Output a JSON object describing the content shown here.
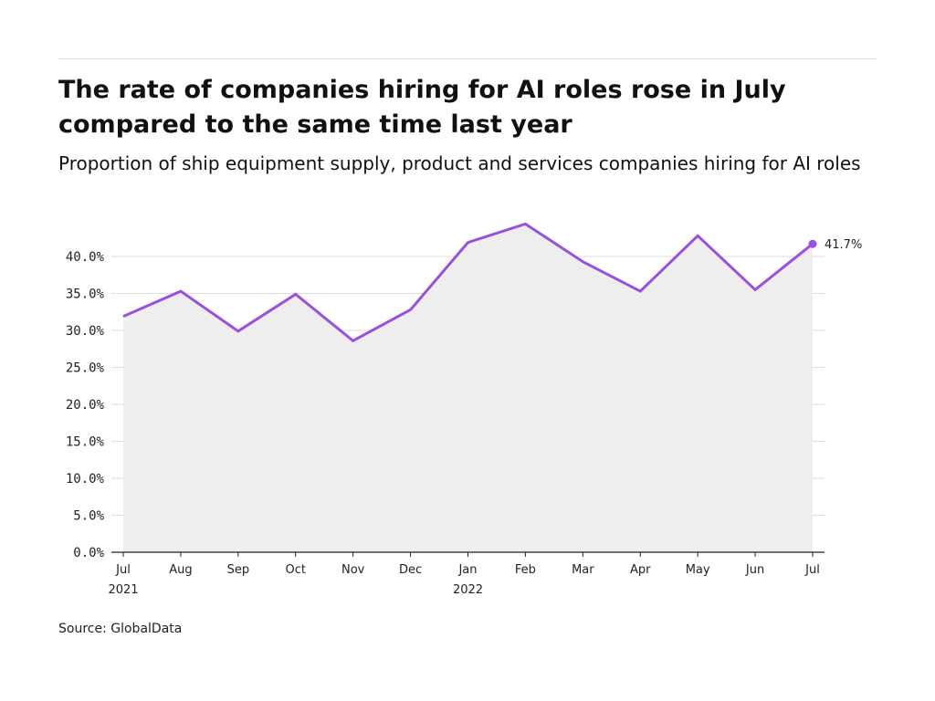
{
  "title": "The rate of companies hiring for AI roles rose in July compared to the same time last year",
  "subtitle": "Proportion of ship equipment supply, product and services companies hiring for AI roles",
  "source": "Source: GlobalData",
  "colors": {
    "line": "#9b4fe0",
    "area": "#eeeeee",
    "grid": "#dddddd"
  },
  "chart_data": {
    "type": "area",
    "x": [
      "Jul",
      "Aug",
      "Sep",
      "Oct",
      "Nov",
      "Dec",
      "Jan",
      "Feb",
      "Mar",
      "Apr",
      "May",
      "Jun",
      "Jul"
    ],
    "x_sublabels": [
      "2021",
      "",
      "",
      "",
      "",
      "",
      "2022",
      "",
      "",
      "",
      "",
      "",
      ""
    ],
    "y_ticks": [
      "0.0%",
      "5.0%",
      "10.0%",
      "15.0%",
      "20.0%",
      "25.0%",
      "30.0%",
      "35.0%",
      "40.0%"
    ],
    "ylim": [
      0,
      45
    ],
    "grid": true,
    "series": [
      {
        "values": [
          31.9,
          35.3,
          29.9,
          34.9,
          28.6,
          32.8,
          41.9,
          44.4,
          39.3,
          35.3,
          42.8,
          35.5,
          41.7
        ]
      }
    ],
    "end_label": "41.7%",
    "title": "The rate of companies hiring for AI roles rose in July compared to the same time last year",
    "ylabel": "",
    "xlabel": ""
  }
}
